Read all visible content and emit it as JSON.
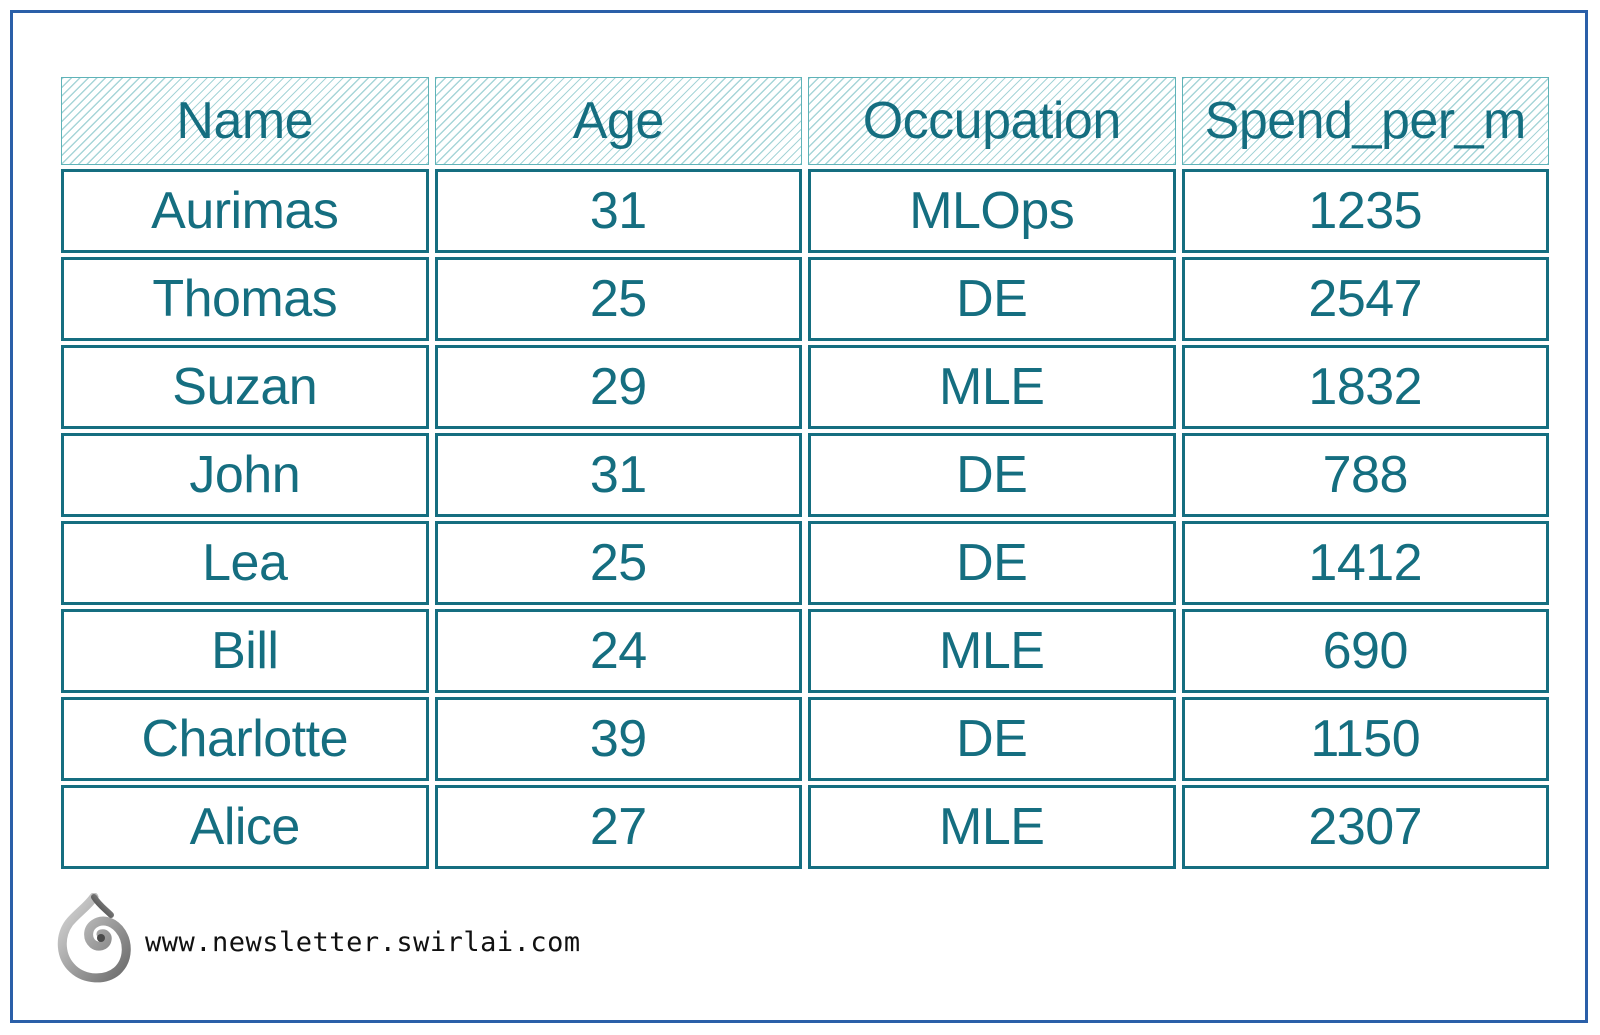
{
  "table": {
    "headers": [
      "Name",
      "Age",
      "Occupation",
      "Spend_per_m"
    ],
    "rows": [
      [
        "Aurimas",
        "31",
        "MLOps",
        "1235"
      ],
      [
        "Thomas",
        "25",
        "DE",
        "2547"
      ],
      [
        "Suzan",
        "29",
        "MLE",
        "1832"
      ],
      [
        "John",
        "31",
        "DE",
        "788"
      ],
      [
        "Lea",
        "25",
        "DE",
        "1412"
      ],
      [
        "Bill",
        "24",
        "MLE",
        "690"
      ],
      [
        "Charlotte",
        "39",
        "DE",
        "1150"
      ],
      [
        "Alice",
        "27",
        "MLE",
        "2307"
      ]
    ]
  },
  "footer": {
    "url": "www.newsletter.swirlai.com",
    "logo_icon": "swirl-logo-icon"
  },
  "colors": {
    "text": "#156e80",
    "cell_border": "#156e80",
    "header_hatch": "#5fb3b8",
    "frame_border": "#2a5fa8"
  }
}
